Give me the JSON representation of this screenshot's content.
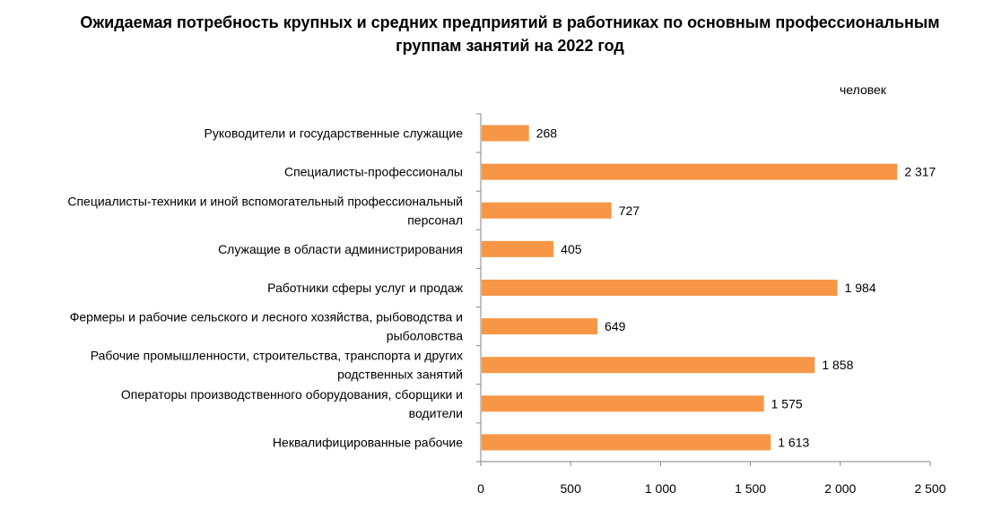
{
  "title_line1": "Ожидаемая потребность крупных и средних предприятий в работниках по основным профессиональным",
  "title_line2": "группам занятий на 2022 год",
  "unit": "человек",
  "colors": {
    "bar": "#F79646",
    "axis": "#868686"
  },
  "chart_data": {
    "type": "bar",
    "orientation": "horizontal",
    "title": "Ожидаемая потребность крупных и средних предприятий в работниках по основным профессиональным группам занятий на 2022 год",
    "unit": "человек",
    "categories": [
      [
        "Руководители и государственные служащие"
      ],
      [
        "Специалисты-профессионалы"
      ],
      [
        "Специалисты-техники и иной вспомогательный профессиональный",
        "персонал"
      ],
      [
        "Служащие в области администрирования"
      ],
      [
        "Работники сферы услуг и продаж"
      ],
      [
        "Фермеры и рабочие сельского и лесного хозяйства, рыбоводства и",
        "рыболовства"
      ],
      [
        "Рабочие промышленности, строительства, транспорта и других",
        "родственных занятий"
      ],
      [
        "Операторы производственного оборудования, сборщики и",
        "водители"
      ],
      [
        "Неквалифицированные рабочие"
      ]
    ],
    "values": [
      268,
      2317,
      727,
      405,
      1984,
      649,
      1858,
      1575,
      1613
    ],
    "value_labels": [
      "268",
      "2 317",
      "727",
      "405",
      "1 984",
      "649",
      "1 858",
      "1 575",
      "1 613"
    ],
    "xlim": [
      0,
      2500
    ],
    "xticks": [
      0,
      500,
      1000,
      1500,
      2000,
      2500
    ],
    "xtick_labels": [
      "0",
      "500",
      "1 000",
      "1 500",
      "2 000",
      "2 500"
    ],
    "grid": false,
    "legend": false
  }
}
